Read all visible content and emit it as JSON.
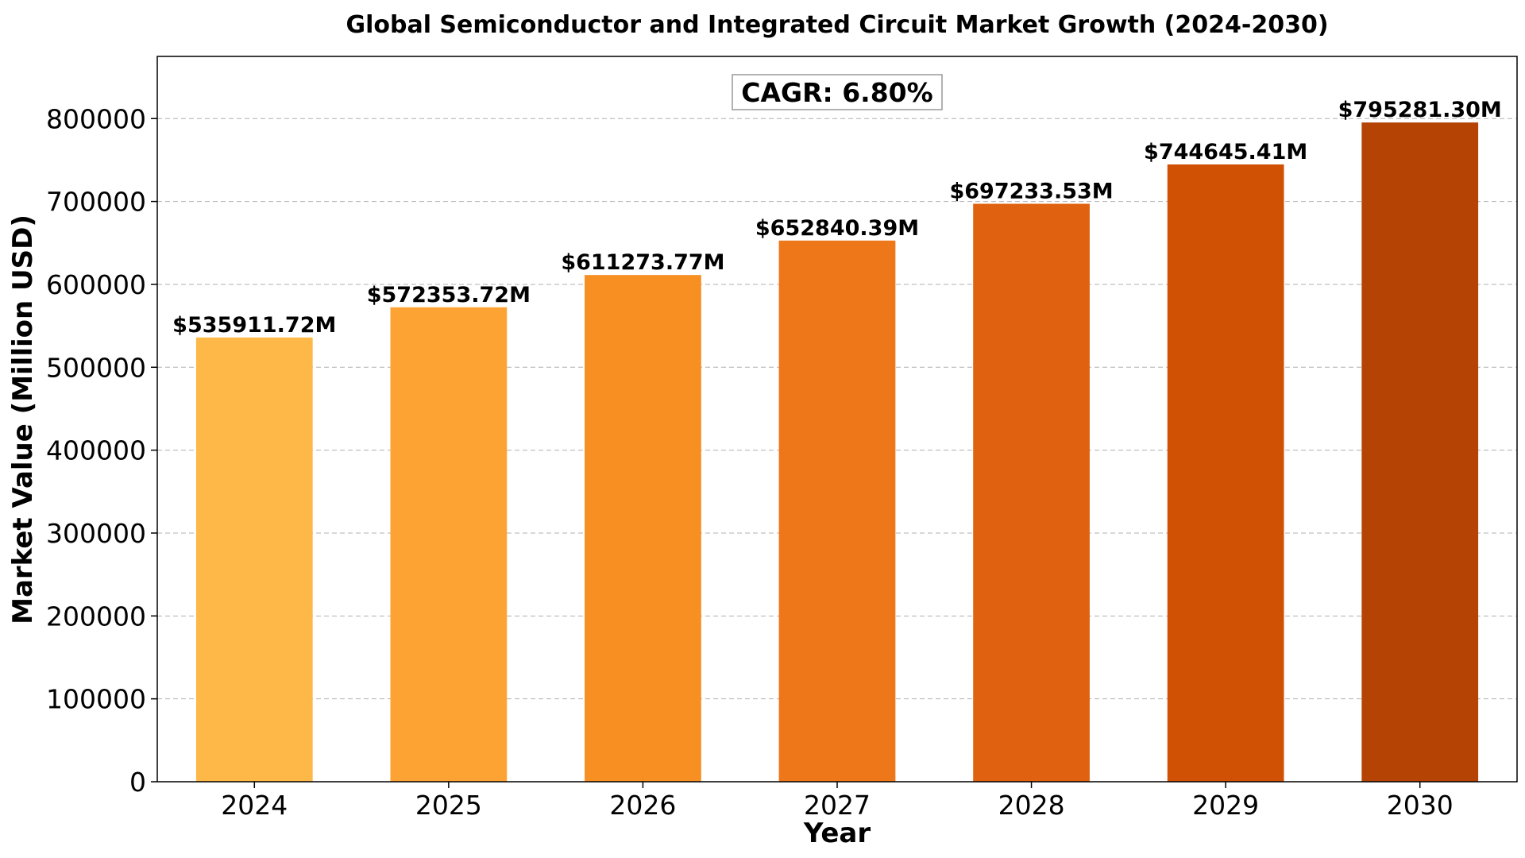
{
  "chart_data": {
    "type": "bar",
    "title": "Global Semiconductor and Integrated Circuit Market Growth (2024-2030)",
    "xlabel": "Year",
    "ylabel": "Market Value (Million USD)",
    "categories": [
      "2024",
      "2025",
      "2026",
      "2027",
      "2028",
      "2029",
      "2030"
    ],
    "values": [
      535911.72,
      572353.72,
      611273.77,
      652840.39,
      697233.53,
      744645.41,
      795281.3
    ],
    "data_labels": [
      "$535911.72M",
      "$572353.72M",
      "$611273.77M",
      "$652840.39M",
      "$697233.53M",
      "$744645.41M",
      "$795281.30M"
    ],
    "bar_colors": [
      "#FDB847",
      "#FDA333",
      "#F78F23",
      "#EE771A",
      "#E06210",
      "#D05104",
      "#B54304"
    ],
    "ylim": [
      0,
      875000
    ],
    "yticks": [
      0,
      100000,
      200000,
      300000,
      400000,
      500000,
      600000,
      700000,
      800000
    ],
    "ytick_labels": [
      "0",
      "100000",
      "200000",
      "300000",
      "400000",
      "500000",
      "600000",
      "700000",
      "800000"
    ],
    "grid": "y-dashed",
    "annotation": "CAGR: 6.80%"
  }
}
